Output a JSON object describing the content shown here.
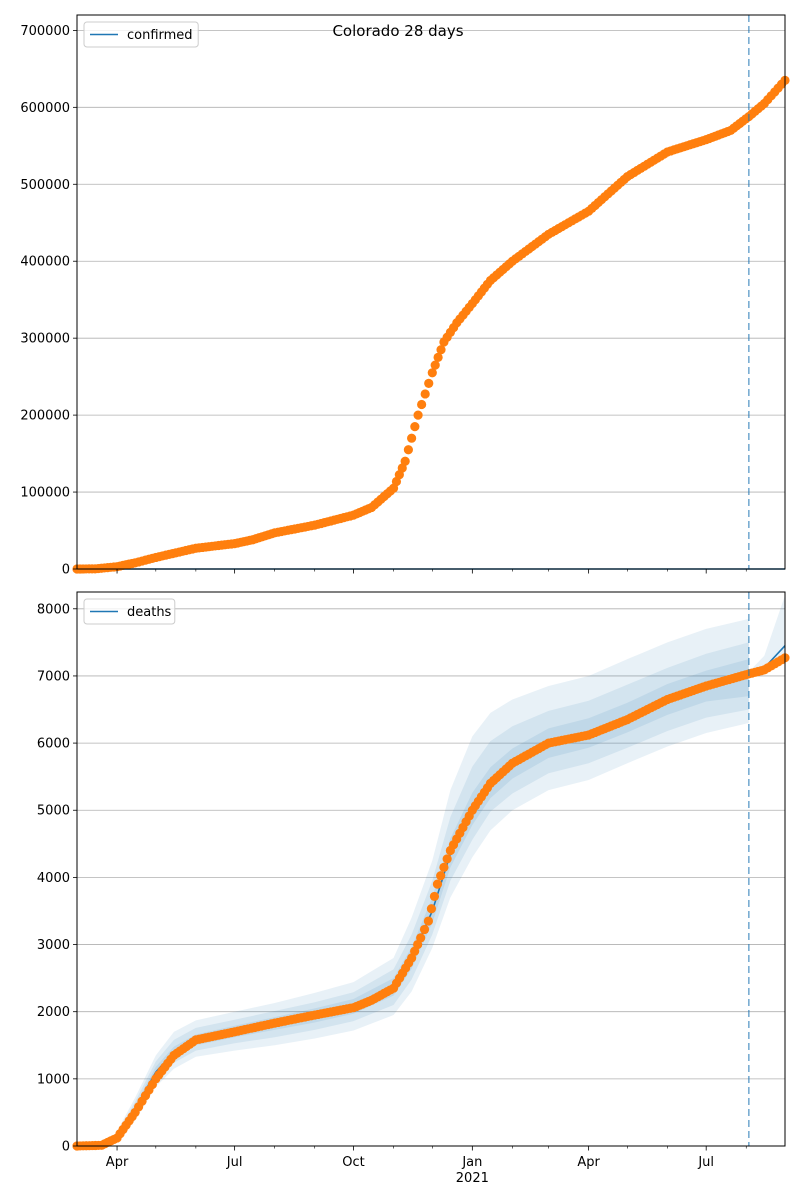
{
  "chart_data": [
    {
      "type": "line",
      "title": "Colorado 28 days",
      "xlabel": "",
      "ylabel": "",
      "x_range": [
        "2020-03-01",
        "2021-08-31"
      ],
      "forecast_start": "2021-08-03",
      "ylim": [
        0,
        720000
      ],
      "yticks": [
        0,
        100000,
        200000,
        300000,
        400000,
        500000,
        600000,
        700000
      ],
      "ytick_labels": [
        "0",
        "100000",
        "200000",
        "300000",
        "400000",
        "500000",
        "600000",
        "700000"
      ],
      "grid": "horizontal",
      "legend": {
        "position": "top-left",
        "entries": [
          "confirmed"
        ]
      },
      "series": [
        {
          "name": "confirmed",
          "kind": "model-line",
          "color": "#1f77b4",
          "points": [
            [
              "2020-03-01",
              0
            ],
            [
              "2021-08-31",
              0
            ]
          ]
        },
        {
          "kind": "observed-markers",
          "color": "#ff7f0e",
          "points": [
            [
              "2020-03-01",
              0
            ],
            [
              "2020-03-15",
              200
            ],
            [
              "2020-04-01",
              3000
            ],
            [
              "2020-04-15",
              8000
            ],
            [
              "2020-05-01",
              15000
            ],
            [
              "2020-06-01",
              27000
            ],
            [
              "2020-07-01",
              33000
            ],
            [
              "2020-07-15",
              38000
            ],
            [
              "2020-08-01",
              47000
            ],
            [
              "2020-09-01",
              57000
            ],
            [
              "2020-10-01",
              70000
            ],
            [
              "2020-10-15",
              80000
            ],
            [
              "2020-11-01",
              105000
            ],
            [
              "2020-11-10",
              140000
            ],
            [
              "2020-11-20",
              200000
            ],
            [
              "2020-12-01",
              255000
            ],
            [
              "2020-12-10",
              295000
            ],
            [
              "2020-12-20",
              320000
            ],
            [
              "2021-01-01",
              345000
            ],
            [
              "2021-01-15",
              375000
            ],
            [
              "2021-02-01",
              400000
            ],
            [
              "2021-03-01",
              435000
            ],
            [
              "2021-04-01",
              465000
            ],
            [
              "2021-05-01",
              510000
            ],
            [
              "2021-06-01",
              542000
            ],
            [
              "2021-07-01",
              558000
            ],
            [
              "2021-07-20",
              570000
            ],
            [
              "2021-08-03",
              588000
            ],
            [
              "2021-08-15",
              605000
            ],
            [
              "2021-08-31",
              635000
            ]
          ]
        }
      ]
    },
    {
      "type": "line",
      "title": "",
      "xlabel": "",
      "ylabel": "",
      "x_range": [
        "2020-03-01",
        "2021-08-31"
      ],
      "forecast_start": "2021-08-03",
      "ylim": [
        0,
        8250
      ],
      "yticks": [
        0,
        1000,
        2000,
        3000,
        4000,
        5000,
        6000,
        7000,
        8000
      ],
      "ytick_labels": [
        "0",
        "1000",
        "2000",
        "3000",
        "4000",
        "5000",
        "6000",
        "7000",
        "8000"
      ],
      "xtick_labels": [
        "Apr",
        "Jul",
        "Oct",
        "Jan",
        "Apr",
        "Jul"
      ],
      "xtick_dates": [
        "2020-04-01",
        "2020-07-01",
        "2020-10-01",
        "2021-01-01",
        "2021-04-01",
        "2021-07-01"
      ],
      "xtick_year_label": "2021",
      "grid": "horizontal",
      "legend": {
        "position": "top-left",
        "entries": [
          "deaths"
        ]
      },
      "series": [
        {
          "name": "deaths",
          "kind": "model-line",
          "color": "#1f77b4",
          "points": [
            [
              "2020-03-01",
              0
            ],
            [
              "2020-03-20",
              10
            ],
            [
              "2020-04-01",
              120
            ],
            [
              "2020-04-15",
              550
            ],
            [
              "2020-05-01",
              1100
            ],
            [
              "2020-05-15",
              1400
            ],
            [
              "2020-06-01",
              1580
            ],
            [
              "2020-07-01",
              1710
            ],
            [
              "2020-08-01",
              1830
            ],
            [
              "2020-09-01",
              1950
            ],
            [
              "2020-10-01",
              2080
            ],
            [
              "2020-10-15",
              2170
            ],
            [
              "2020-11-01",
              2370
            ],
            [
              "2020-11-15",
              2800
            ],
            [
              "2020-12-01",
              3500
            ],
            [
              "2020-12-15",
              4350
            ],
            [
              "2021-01-01",
              5000
            ],
            [
              "2021-01-15",
              5400
            ],
            [
              "2021-02-01",
              5700
            ],
            [
              "2021-03-01",
              6000
            ],
            [
              "2021-04-01",
              6150
            ],
            [
              "2021-05-01",
              6380
            ],
            [
              "2021-06-01",
              6650
            ],
            [
              "2021-07-01",
              6850
            ],
            [
              "2021-08-03",
              7030
            ],
            [
              "2021-08-15",
              7120
            ],
            [
              "2021-08-31",
              7450
            ]
          ]
        },
        {
          "kind": "observed-markers",
          "color": "#ff7f0e",
          "points": [
            [
              "2020-03-01",
              0
            ],
            [
              "2020-03-20",
              10
            ],
            [
              "2020-04-01",
              120
            ],
            [
              "2020-04-15",
              500
            ],
            [
              "2020-05-01",
              1000
            ],
            [
              "2020-05-15",
              1350
            ],
            [
              "2020-06-01",
              1580
            ],
            [
              "2020-07-01",
              1700
            ],
            [
              "2020-08-01",
              1830
            ],
            [
              "2020-09-01",
              1950
            ],
            [
              "2020-10-01",
              2060
            ],
            [
              "2020-10-15",
              2170
            ],
            [
              "2020-11-01",
              2350
            ],
            [
              "2020-11-15",
              2800
            ],
            [
              "2020-11-22",
              3100
            ],
            [
              "2020-11-28",
              3350
            ],
            [
              "2020-12-05",
              3900
            ],
            [
              "2020-12-15",
              4400
            ],
            [
              "2021-01-01",
              5000
            ],
            [
              "2021-01-15",
              5400
            ],
            [
              "2021-02-01",
              5700
            ],
            [
              "2021-03-01",
              6000
            ],
            [
              "2021-04-01",
              6120
            ],
            [
              "2021-05-01",
              6350
            ],
            [
              "2021-06-01",
              6650
            ],
            [
              "2021-07-01",
              6850
            ],
            [
              "2021-08-03",
              7030
            ],
            [
              "2021-08-15",
              7090
            ],
            [
              "2021-08-31",
              7270
            ]
          ]
        }
      ],
      "uncertainty_bands": [
        {
          "color": "#1f77b4",
          "opacity": 0.1,
          "points": [
            [
              "2020-04-01",
              50,
              220
            ],
            [
              "2020-04-15",
              380,
              720
            ],
            [
              "2020-05-01",
              880,
              1350
            ],
            [
              "2020-05-15",
              1150,
              1700
            ],
            [
              "2020-06-01",
              1330,
              1870
            ],
            [
              "2020-07-01",
              1420,
              2000
            ],
            [
              "2020-08-01",
              1500,
              2130
            ],
            [
              "2020-09-01",
              1600,
              2280
            ],
            [
              "2020-10-01",
              1720,
              2440
            ],
            [
              "2020-11-01",
              1950,
              2800
            ],
            [
              "2020-11-15",
              2300,
              3400
            ],
            [
              "2020-12-01",
              2950,
              4250
            ],
            [
              "2020-12-15",
              3700,
              5300
            ],
            [
              "2021-01-01",
              4300,
              6100
            ],
            [
              "2021-01-15",
              4700,
              6450
            ],
            [
              "2021-02-01",
              5000,
              6650
            ],
            [
              "2021-03-01",
              5300,
              6850
            ],
            [
              "2021-04-01",
              5450,
              7000
            ],
            [
              "2021-05-01",
              5700,
              7250
            ],
            [
              "2021-06-01",
              5950,
              7500
            ],
            [
              "2021-07-01",
              6150,
              7700
            ],
            [
              "2021-08-03",
              6300,
              7850
            ]
          ]
        },
        {
          "color": "#1f77b4",
          "opacity": 0.1,
          "points": [
            [
              "2020-04-01",
              70,
              180
            ],
            [
              "2020-04-15",
              430,
              660
            ],
            [
              "2020-05-01",
              950,
              1260
            ],
            [
              "2020-05-15",
              1240,
              1580
            ],
            [
              "2020-06-01",
              1420,
              1760
            ],
            [
              "2020-07-01",
              1530,
              1880
            ],
            [
              "2020-08-01",
              1620,
              2010
            ],
            [
              "2020-09-01",
              1730,
              2140
            ],
            [
              "2020-10-01",
              1860,
              2290
            ],
            [
              "2020-11-01",
              2100,
              2630
            ],
            [
              "2020-11-15",
              2480,
              3150
            ],
            [
              "2020-12-01",
              3150,
              3950
            ],
            [
              "2020-12-15",
              3950,
              4900
            ],
            [
              "2021-01-01",
              4560,
              5650
            ],
            [
              "2021-01-15",
              4980,
              6030
            ],
            [
              "2021-02-01",
              5250,
              6250
            ],
            [
              "2021-03-01",
              5550,
              6480
            ],
            [
              "2021-04-01",
              5700,
              6630
            ],
            [
              "2021-05-01",
              5930,
              6870
            ],
            [
              "2021-06-01",
              6180,
              7120
            ],
            [
              "2021-07-01",
              6380,
              7330
            ],
            [
              "2021-08-03",
              6500,
              7500
            ]
          ]
        },
        {
          "color": "#1f77b4",
          "opacity": 0.1,
          "points": [
            [
              "2020-04-01",
              90,
              150
            ],
            [
              "2020-04-15",
              480,
              610
            ],
            [
              "2020-05-01",
              1020,
              1180
            ],
            [
              "2020-05-15",
              1320,
              1480
            ],
            [
              "2020-06-01",
              1500,
              1660
            ],
            [
              "2020-07-01",
              1620,
              1790
            ],
            [
              "2020-08-01",
              1730,
              1920
            ],
            [
              "2020-09-01",
              1840,
              2050
            ],
            [
              "2020-10-01",
              1970,
              2190
            ],
            [
              "2020-11-01",
              2240,
              2500
            ],
            [
              "2020-11-15",
              2640,
              2960
            ],
            [
              "2020-12-01",
              3320,
              3700
            ],
            [
              "2020-12-15",
              4150,
              4580
            ],
            [
              "2021-01-01",
              4780,
              5260
            ],
            [
              "2021-01-15",
              5180,
              5640
            ],
            [
              "2021-02-01",
              5470,
              5920
            ],
            [
              "2021-03-01",
              5780,
              6220
            ],
            [
              "2021-04-01",
              5930,
              6370
            ],
            [
              "2021-05-01",
              6160,
              6600
            ],
            [
              "2021-06-01",
              6420,
              6880
            ],
            [
              "2021-07-01",
              6620,
              7080
            ],
            [
              "2021-08-03",
              6700,
              7250
            ]
          ]
        },
        {
          "color": "#1f77b4",
          "opacity": 0.1,
          "points": [
            [
              "2021-08-03",
              7000,
              7060
            ],
            [
              "2021-08-15",
              7080,
              7300
            ],
            [
              "2021-08-31",
              7300,
              8200
            ]
          ]
        }
      ]
    }
  ]
}
